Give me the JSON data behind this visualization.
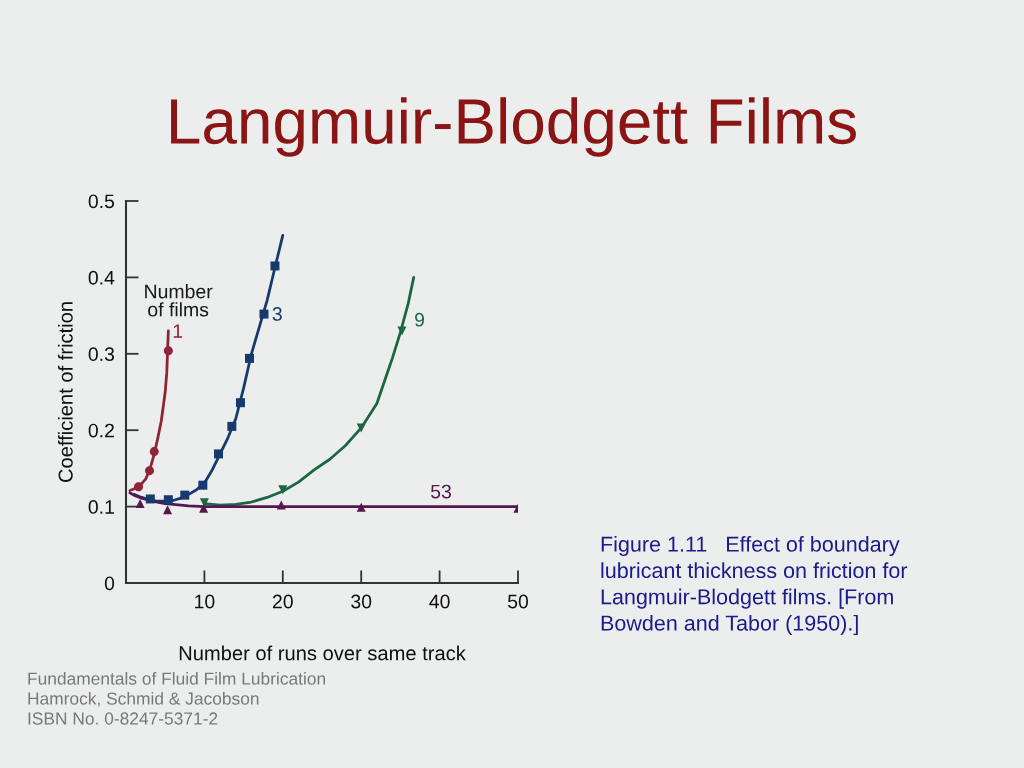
{
  "chart_data": {
    "type": "scatter",
    "title": "Langmuir-Blodgett Films",
    "xlabel": "Number of runs over same track",
    "ylabel": "Coefficient of friction",
    "xlim": [
      0,
      50
    ],
    "ylim": [
      0,
      0.5
    ],
    "xticks": [
      10,
      20,
      30,
      40,
      50
    ],
    "yticks": [
      0,
      0.1,
      0.2,
      0.3,
      0.4,
      0.5
    ],
    "annotations": [
      "Number\nof films",
      "Figure 1.11   Effect of boundary\nlubricant thickness on friction for\nLangmuir-Blodgett films. [From\nBowden and Tabor (1950).]",
      "Fundamentals of Fluid Film Lubrication\nHamrock, Schmid & Jacobson\nISBN No. 0-8247-5371-2"
    ],
    "series": [
      {
        "type": "line",
        "color": "#8e2436",
        "x": [
          0.5,
          1,
          1.5,
          2,
          2.5,
          3,
          3.5,
          4,
          4.5,
          5,
          5.2,
          5.4
        ],
        "values": [
          0.121,
          0.123,
          0.126,
          0.13,
          0.136,
          0.147,
          0.165,
          0.187,
          0.212,
          0.25,
          0.275,
          0.33
        ]
      },
      {
        "type": "line",
        "color": "#163a6e",
        "x": [
          1,
          2,
          3,
          4,
          5,
          6,
          7,
          8,
          9,
          10,
          11,
          12,
          13,
          14,
          15,
          16,
          17,
          18,
          19,
          20
        ],
        "values": [
          0.116,
          0.112,
          0.109,
          0.107,
          0.107,
          0.108,
          0.111,
          0.116,
          0.122,
          0.131,
          0.148,
          0.169,
          0.19,
          0.215,
          0.255,
          0.3,
          0.335,
          0.37,
          0.413,
          0.455
        ]
      },
      {
        "type": "line",
        "color": "#1b6645",
        "x": [
          10,
          12,
          14,
          16,
          18,
          20,
          22,
          24,
          26,
          28,
          30,
          32,
          33,
          34,
          35,
          36,
          36.7
        ],
        "values": [
          0.104,
          0.102,
          0.103,
          0.106,
          0.112,
          0.12,
          0.132,
          0.148,
          0.162,
          0.18,
          0.203,
          0.235,
          0.265,
          0.295,
          0.328,
          0.366,
          0.4
        ]
      },
      {
        "type": "line",
        "color": "#55174d",
        "x": [
          0.5,
          1,
          2,
          3,
          4,
          5,
          6,
          7,
          8,
          10,
          15,
          20,
          30,
          40,
          50
        ],
        "values": [
          0.118,
          0.115,
          0.111,
          0.108,
          0.106,
          0.104,
          0.103,
          0.102,
          0.101,
          0.1,
          0.1,
          0.1,
          0.1,
          0.1,
          0.1
        ]
      },
      {
        "name": "1",
        "marker": "circle",
        "color": "#8e2436",
        "x": [
          1.6,
          3.0,
          3.6,
          5.4
        ],
        "values": [
          0.126,
          0.147,
          0.172,
          0.304
        ]
      },
      {
        "name": "3",
        "marker": "square",
        "color": "#163a6e",
        "x": [
          3.1,
          5.4,
          7.5,
          9.8,
          11.8,
          13.5,
          14.6,
          15.75,
          17.6,
          19.0
        ],
        "values": [
          0.11,
          0.109,
          0.115,
          0.128,
          0.169,
          0.205,
          0.236,
          0.294,
          0.352,
          0.415
        ]
      },
      {
        "name": "9",
        "marker": "triangle_down",
        "color": "#1b6645",
        "x": [
          10,
          20,
          30,
          35.2
        ],
        "values": [
          0.105,
          0.122,
          0.203,
          0.33
        ]
      },
      {
        "name": "53",
        "marker": "triangle",
        "color": "#55174d",
        "x": [
          1.8,
          5.3,
          9.9,
          19.8,
          30,
          50
        ],
        "values": [
          0.104,
          0.096,
          0.098,
          0.102,
          0.099,
          0.098
        ]
      }
    ]
  }
}
